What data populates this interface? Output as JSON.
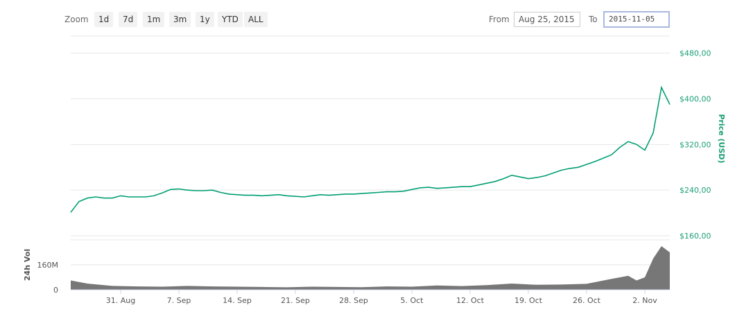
{
  "toolbar": {
    "zoom_label": "Zoom",
    "zoom_buttons": [
      "1d",
      "7d",
      "1m",
      "3m",
      "1y",
      "YTD",
      "ALL"
    ],
    "from_label": "From",
    "from_value": "Aug 25, 2015",
    "to_label": "To",
    "to_value": "2015-11-05"
  },
  "colors": {
    "price_line": "#009e73",
    "price_axis": "#1a9e76",
    "volume": "#777777",
    "grid": "#e6e6e6"
  },
  "chart_data": [
    {
      "type": "line",
      "ylabel": "Price (USD)",
      "y_axis_side": "right",
      "ylim": [
        160,
        510
      ],
      "ytick_labels": [
        "$160,00",
        "$240,00",
        "$320,00",
        "$400,00",
        "$480,00"
      ],
      "yticks": [
        160,
        240,
        320,
        400,
        480
      ],
      "xlim": [
        "2015-08-25",
        "2015-11-05"
      ],
      "xtick_labels": [
        "31. Aug",
        "7. Sep",
        "14. Sep",
        "21. Sep",
        "28. Sep",
        "5. Oct",
        "12. Oct",
        "19. Oct",
        "26. Oct",
        "2. Nov"
      ],
      "xticks": [
        "2015-08-31",
        "2015-09-07",
        "2015-09-14",
        "2015-09-21",
        "2015-09-28",
        "2015-10-05",
        "2015-10-12",
        "2015-10-19",
        "2015-10-26",
        "2015-11-02"
      ],
      "grid": true,
      "series": [
        {
          "x": [
            "2015-08-25",
            "2015-08-26",
            "2015-08-27",
            "2015-08-28",
            "2015-08-29",
            "2015-08-30",
            "2015-08-31",
            "2015-09-01",
            "2015-09-02",
            "2015-09-03",
            "2015-09-04",
            "2015-09-05",
            "2015-09-06",
            "2015-09-07",
            "2015-09-08",
            "2015-09-09",
            "2015-09-10",
            "2015-09-11",
            "2015-09-12",
            "2015-09-13",
            "2015-09-14",
            "2015-09-15",
            "2015-09-16",
            "2015-09-17",
            "2015-09-18",
            "2015-09-19",
            "2015-09-20",
            "2015-09-21",
            "2015-09-22",
            "2015-09-23",
            "2015-09-24",
            "2015-09-25",
            "2015-09-26",
            "2015-09-27",
            "2015-09-28",
            "2015-09-29",
            "2015-09-30",
            "2015-10-01",
            "2015-10-02",
            "2015-10-03",
            "2015-10-04",
            "2015-10-05",
            "2015-10-06",
            "2015-10-07",
            "2015-10-08",
            "2015-10-09",
            "2015-10-10",
            "2015-10-11",
            "2015-10-12",
            "2015-10-13",
            "2015-10-14",
            "2015-10-15",
            "2015-10-16",
            "2015-10-17",
            "2015-10-18",
            "2015-10-19",
            "2015-10-20",
            "2015-10-21",
            "2015-10-22",
            "2015-10-23",
            "2015-10-24",
            "2015-10-25",
            "2015-10-26",
            "2015-10-27",
            "2015-10-28",
            "2015-10-29",
            "2015-10-30",
            "2015-10-31",
            "2015-11-01",
            "2015-11-02",
            "2015-11-03",
            "2015-11-04",
            "2015-11-05"
          ],
          "values": [
            201,
            220,
            226,
            228,
            226,
            226,
            230,
            228,
            228,
            228,
            230,
            235,
            241,
            242,
            240,
            239,
            239,
            240,
            236,
            233,
            232,
            231,
            231,
            230,
            231,
            232,
            230,
            229,
            228,
            230,
            232,
            231,
            232,
            233,
            233,
            234,
            235,
            236,
            237,
            237,
            238,
            241,
            244,
            245,
            243,
            244,
            245,
            246,
            246,
            249,
            252,
            255,
            260,
            266,
            263,
            260,
            262,
            265,
            270,
            275,
            278,
            280,
            285,
            290,
            296,
            302,
            315,
            325,
            320,
            310,
            340,
            420,
            390
          ]
        }
      ]
    },
    {
      "type": "area",
      "ylabel": "24h Vol",
      "ytick_labels": [
        "0",
        "160M"
      ],
      "yticks": [
        0,
        160
      ],
      "ylim": [
        0,
        320
      ],
      "series": [
        {
          "x": [
            "2015-08-25",
            "2015-08-27",
            "2015-08-30",
            "2015-09-02",
            "2015-09-05",
            "2015-09-08",
            "2015-09-11",
            "2015-09-14",
            "2015-09-17",
            "2015-09-20",
            "2015-09-23",
            "2015-09-26",
            "2015-09-29",
            "2015-10-02",
            "2015-10-05",
            "2015-10-08",
            "2015-10-11",
            "2015-10-14",
            "2015-10-17",
            "2015-10-20",
            "2015-10-23",
            "2015-10-26",
            "2015-10-29",
            "2015-10-31",
            "2015-11-01",
            "2015-11-02",
            "2015-11-03",
            "2015-11-04",
            "2015-11-05"
          ],
          "values": [
            60,
            40,
            25,
            22,
            20,
            25,
            22,
            20,
            18,
            16,
            20,
            18,
            17,
            22,
            20,
            28,
            24,
            30,
            40,
            32,
            34,
            38,
            70,
            90,
            60,
            80,
            200,
            280,
            240
          ]
        }
      ]
    }
  ]
}
